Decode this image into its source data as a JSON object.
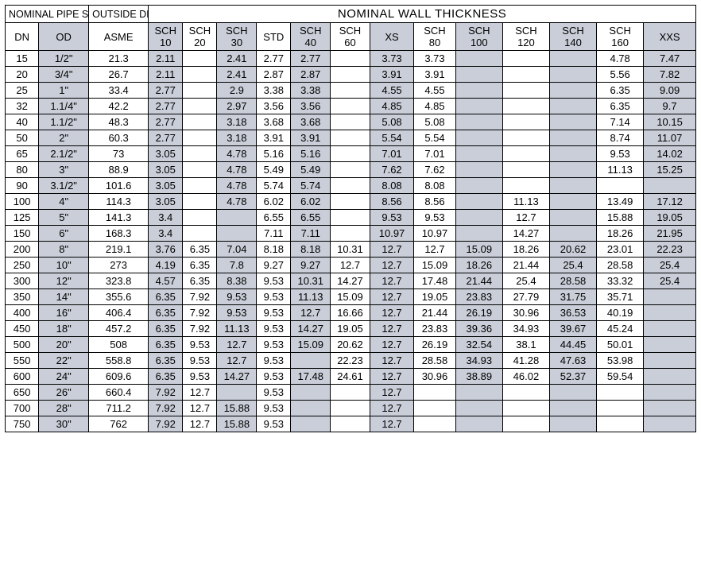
{
  "headers": {
    "nominal_size": "NOMINAL PIPE SIZE",
    "outside_diameter": "OUTSIDE DIAMETER",
    "main_title": "NOMINAL WALL THICKNESS",
    "cols": [
      "DN",
      "OD",
      "ASME",
      "SCH 10",
      "SCH 20",
      "SCH 30",
      "STD",
      "SCH 40",
      "SCH 60",
      "XS",
      "SCH 80",
      "SCH 100",
      "SCH 120",
      "SCH 140",
      "SCH 160",
      "XXS"
    ]
  },
  "col_widths_pct": [
    4.5,
    6.7,
    8.0,
    4.6,
    4.6,
    5.3,
    4.6,
    5.3,
    5.3,
    5.9,
    5.6,
    6.3,
    6.3,
    6.3,
    6.3,
    7.0
  ],
  "shaded_cols": [
    false,
    true,
    false,
    true,
    false,
    true,
    false,
    true,
    false,
    true,
    false,
    true,
    false,
    true,
    false,
    true
  ],
  "rows": [
    [
      "15",
      "1/2\"",
      "21.3",
      "2.11",
      "",
      "2.41",
      "2.77",
      "2.77",
      "",
      "3.73",
      "3.73",
      "",
      "",
      "",
      "4.78",
      "7.47"
    ],
    [
      "20",
      "3/4\"",
      "26.7",
      "2.11",
      "",
      "2.41",
      "2.87",
      "2.87",
      "",
      "3.91",
      "3.91",
      "",
      "",
      "",
      "5.56",
      "7.82"
    ],
    [
      "25",
      "1\"",
      "33.4",
      "2.77",
      "",
      "2.9",
      "3.38",
      "3.38",
      "",
      "4.55",
      "4.55",
      "",
      "",
      "",
      "6.35",
      "9.09"
    ],
    [
      "32",
      "1.1/4\"",
      "42.2",
      "2.77",
      "",
      "2.97",
      "3.56",
      "3.56",
      "",
      "4.85",
      "4.85",
      "",
      "",
      "",
      "6.35",
      "9.7"
    ],
    [
      "40",
      "1.1/2\"",
      "48.3",
      "2.77",
      "",
      "3.18",
      "3.68",
      "3.68",
      "",
      "5.08",
      "5.08",
      "",
      "",
      "",
      "7.14",
      "10.15"
    ],
    [
      "50",
      "2\"",
      "60.3",
      "2.77",
      "",
      "3.18",
      "3.91",
      "3.91",
      "",
      "5.54",
      "5.54",
      "",
      "",
      "",
      "8.74",
      "11.07"
    ],
    [
      "65",
      "2.1/2\"",
      "73",
      "3.05",
      "",
      "4.78",
      "5.16",
      "5.16",
      "",
      "7.01",
      "7.01",
      "",
      "",
      "",
      "9.53",
      "14.02"
    ],
    [
      "80",
      "3\"",
      "88.9",
      "3.05",
      "",
      "4.78",
      "5.49",
      "5.49",
      "",
      "7.62",
      "7.62",
      "",
      "",
      "",
      "11.13",
      "15.25"
    ],
    [
      "90",
      "3.1/2\"",
      "101.6",
      "3.05",
      "",
      "4.78",
      "5.74",
      "5.74",
      "",
      "8.08",
      "8.08",
      "",
      "",
      "",
      "",
      ""
    ],
    [
      "100",
      "4\"",
      "114.3",
      "3.05",
      "",
      "4.78",
      "6.02",
      "6.02",
      "",
      "8.56",
      "8.56",
      "",
      "11.13",
      "",
      "13.49",
      "17.12"
    ],
    [
      "125",
      "5\"",
      "141.3",
      "3.4",
      "",
      "",
      "6.55",
      "6.55",
      "",
      "9.53",
      "9.53",
      "",
      "12.7",
      "",
      "15.88",
      "19.05"
    ],
    [
      "150",
      "6\"",
      "168.3",
      "3.4",
      "",
      "",
      "7.11",
      "7.11",
      "",
      "10.97",
      "10.97",
      "",
      "14.27",
      "",
      "18.26",
      "21.95"
    ],
    [
      "200",
      "8\"",
      "219.1",
      "3.76",
      "6.35",
      "7.04",
      "8.18",
      "8.18",
      "10.31",
      "12.7",
      "12.7",
      "15.09",
      "18.26",
      "20.62",
      "23.01",
      "22.23"
    ],
    [
      "250",
      "10\"",
      "273",
      "4.19",
      "6.35",
      "7.8",
      "9.27",
      "9.27",
      "12.7",
      "12.7",
      "15.09",
      "18.26",
      "21.44",
      "25.4",
      "28.58",
      "25.4"
    ],
    [
      "300",
      "12\"",
      "323.8",
      "4.57",
      "6.35",
      "8.38",
      "9.53",
      "10.31",
      "14.27",
      "12.7",
      "17.48",
      "21.44",
      "25.4",
      "28.58",
      "33.32",
      "25.4"
    ],
    [
      "350",
      "14\"",
      "355.6",
      "6.35",
      "7.92",
      "9.53",
      "9.53",
      "11.13",
      "15.09",
      "12.7",
      "19.05",
      "23.83",
      "27.79",
      "31.75",
      "35.71",
      ""
    ],
    [
      "400",
      "16\"",
      "406.4",
      "6.35",
      "7.92",
      "9.53",
      "9.53",
      "12.7",
      "16.66",
      "12.7",
      "21.44",
      "26.19",
      "30.96",
      "36.53",
      "40.19",
      ""
    ],
    [
      "450",
      "18\"",
      "457.2",
      "6.35",
      "7.92",
      "11.13",
      "9.53",
      "14.27",
      "19.05",
      "12.7",
      "23.83",
      "39.36",
      "34.93",
      "39.67",
      "45.24",
      ""
    ],
    [
      "500",
      "20\"",
      "508",
      "6.35",
      "9.53",
      "12.7",
      "9.53",
      "15.09",
      "20.62",
      "12.7",
      "26.19",
      "32.54",
      "38.1",
      "44.45",
      "50.01",
      ""
    ],
    [
      "550",
      "22\"",
      "558.8",
      "6.35",
      "9.53",
      "12.7",
      "9.53",
      "",
      "22.23",
      "12.7",
      "28.58",
      "34.93",
      "41.28",
      "47.63",
      "53.98",
      ""
    ],
    [
      "600",
      "24\"",
      "609.6",
      "6.35",
      "9.53",
      "14.27",
      "9.53",
      "17.48",
      "24.61",
      "12.7",
      "30.96",
      "38.89",
      "46.02",
      "52.37",
      "59.54",
      ""
    ],
    [
      "650",
      "26\"",
      "660.4",
      "7.92",
      "12.7",
      "",
      "9.53",
      "",
      "",
      "12.7",
      "",
      "",
      "",
      "",
      "",
      ""
    ],
    [
      "700",
      "28\"",
      "711.2",
      "7.92",
      "12.7",
      "15.88",
      "9.53",
      "",
      "",
      "12.7",
      "",
      "",
      "",
      "",
      "",
      ""
    ],
    [
      "750",
      "30\"",
      "762",
      "7.92",
      "12.7",
      "15.88",
      "9.53",
      "",
      "",
      "12.7",
      "",
      "",
      "",
      "",
      "",
      ""
    ]
  ],
  "style": {
    "shaded_bg": "#c9ced8",
    "border_color": "#000000",
    "font_family": "Arial",
    "header_fontsize": 13,
    "body_fontsize": 13
  }
}
